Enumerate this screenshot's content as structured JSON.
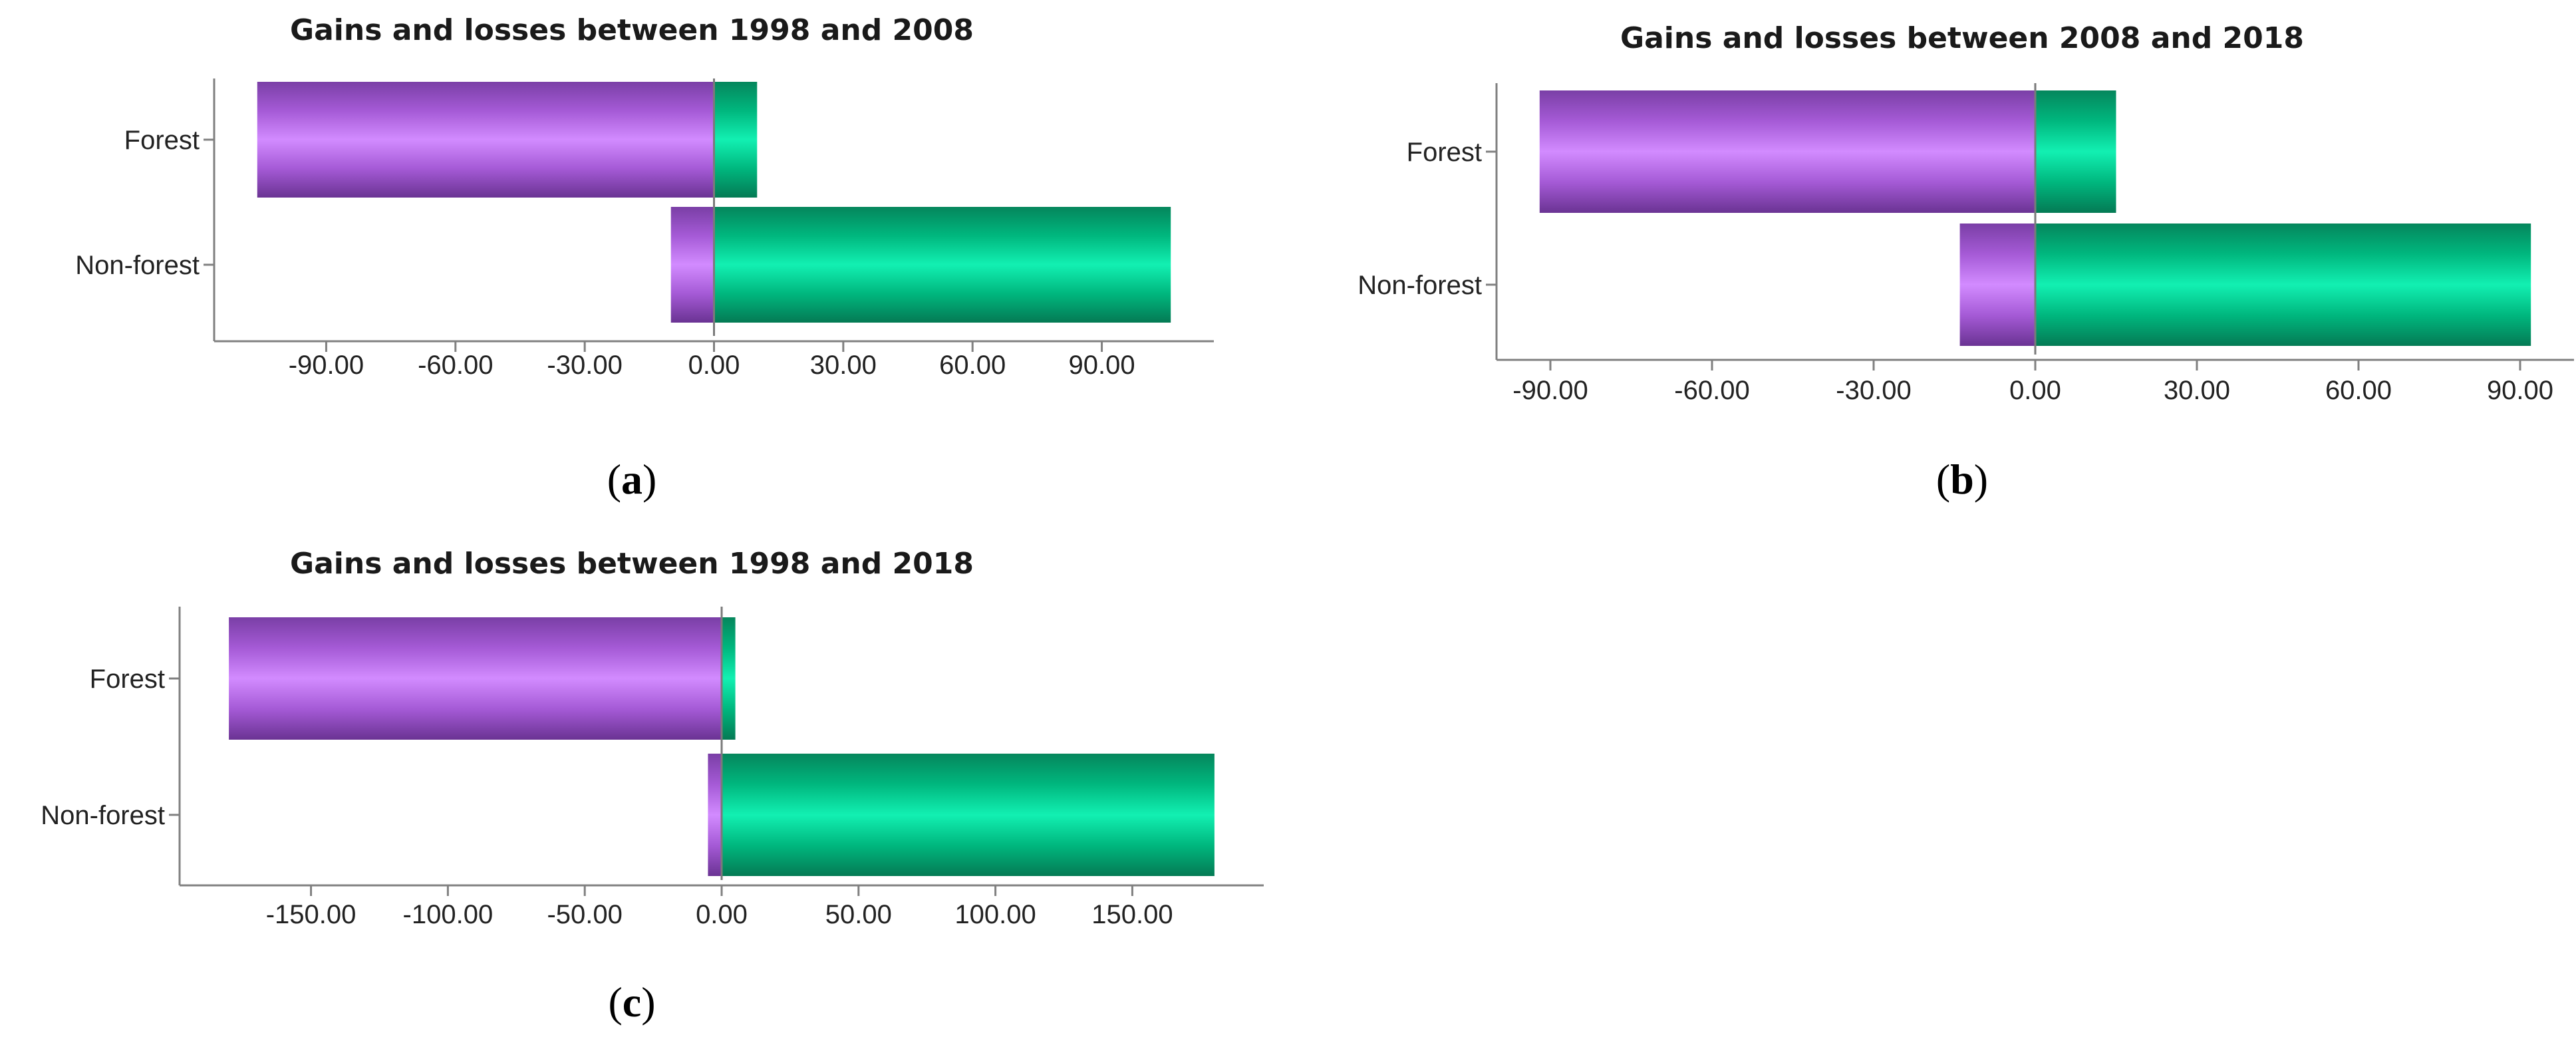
{
  "colors": {
    "loss": "#b06ae0",
    "gain": "#00c98a"
  },
  "chart_data": [
    {
      "id": "a",
      "type": "bar",
      "orientation": "horizontal",
      "title": "Gains and losses between 1998 and 2008",
      "panel_label": "a",
      "categories": [
        "Forest",
        "Non-forest"
      ],
      "series": [
        {
          "role": "loss",
          "values": [
            -106,
            -10
          ]
        },
        {
          "role": "gain",
          "values": [
            10,
            106
          ]
        }
      ],
      "xlim": [
        -116,
        116
      ],
      "xticks": [
        -90,
        -60,
        -30,
        0,
        30,
        60,
        90
      ],
      "xtick_labels": [
        "-90.00",
        "-60.00",
        "-30.00",
        "0.00",
        "30.00",
        "60.00",
        "90.00"
      ],
      "grid": false,
      "legend": "none"
    },
    {
      "id": "b",
      "type": "bar",
      "orientation": "horizontal",
      "title": "Gains and losses between 2008 and 2018",
      "panel_label": "b",
      "categories": [
        "Forest",
        "Non-forest"
      ],
      "series": [
        {
          "role": "loss",
          "values": [
            -92,
            -14
          ]
        },
        {
          "role": "gain",
          "values": [
            15,
            92
          ]
        }
      ],
      "xlim": [
        -100,
        100
      ],
      "xticks": [
        -90,
        -60,
        -30,
        0,
        30,
        60,
        90
      ],
      "xtick_labels": [
        "-90.00",
        "-60.00",
        "-30.00",
        "0.00",
        "30.00",
        "60.00",
        "90.00"
      ],
      "grid": false,
      "legend": "none"
    },
    {
      "id": "c",
      "type": "bar",
      "orientation": "horizontal",
      "title": "Gains and losses between 1998 and 2018",
      "panel_label": "c",
      "categories": [
        "Forest",
        "Non-forest"
      ],
      "series": [
        {
          "role": "loss",
          "values": [
            -180,
            -5
          ]
        },
        {
          "role": "gain",
          "values": [
            5,
            180
          ]
        }
      ],
      "xlim": [
        -198,
        198
      ],
      "xticks": [
        -150,
        -100,
        -50,
        0,
        50,
        100,
        150
      ],
      "xtick_labels": [
        "-150.00",
        "-100.00",
        "-50.00",
        "0.00",
        "50.00",
        "100.00",
        "150.00"
      ],
      "grid": false,
      "legend": "none"
    }
  ]
}
